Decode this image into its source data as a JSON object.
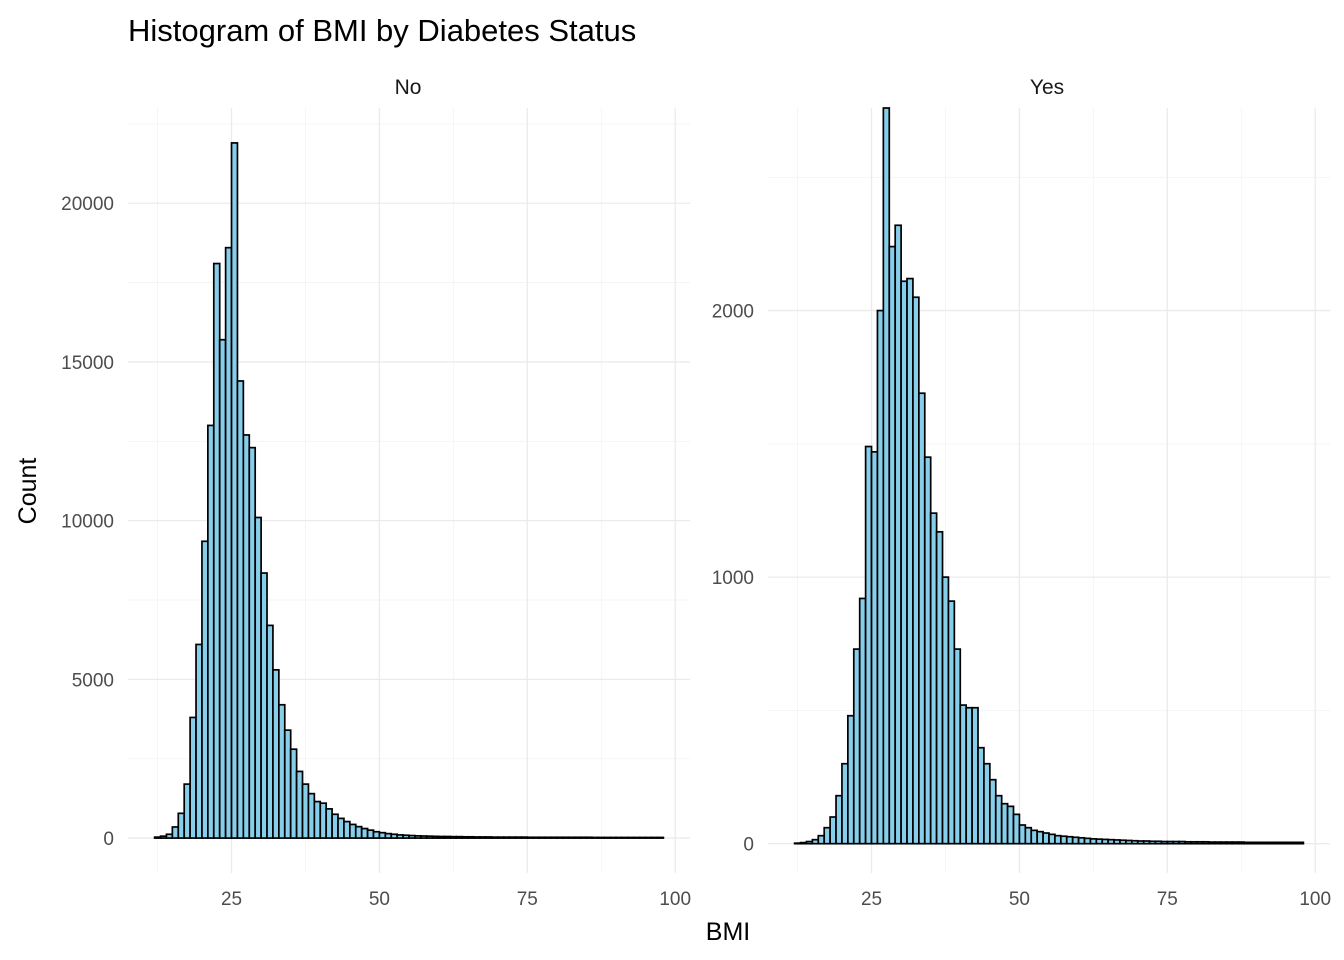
{
  "chart_data": {
    "type": "bar",
    "title": "Histogram of BMI by Diabetes Status",
    "xlabel": "BMI",
    "ylabel": "Count",
    "bin_width": 1,
    "bin_start": 12,
    "bar_fill": "#87ceeb",
    "bar_stroke": "#000000",
    "grid": true,
    "legend": "none",
    "panels": [
      {
        "label": "No",
        "xlim": [
          7.5,
          102.5
        ],
        "ylim": [
          -1100,
          23000
        ],
        "x_ticks": [
          25,
          50,
          75,
          100
        ],
        "y_ticks": [
          0,
          5000,
          10000,
          15000,
          20000
        ],
        "y_tick_labels": [
          "0",
          "5000",
          "10000",
          "15000",
          "20000"
        ],
        "values": [
          30,
          60,
          120,
          350,
          780,
          1700,
          3800,
          6100,
          9350,
          13000,
          18100,
          15700,
          18600,
          21900,
          14400,
          12700,
          12300,
          10100,
          8350,
          6700,
          5300,
          4200,
          3400,
          2800,
          2100,
          1700,
          1400,
          1150,
          1100,
          920,
          750,
          620,
          520,
          430,
          360,
          300,
          250,
          200,
          170,
          140,
          120,
          100,
          90,
          80,
          70,
          65,
          60,
          55,
          50,
          50,
          45,
          45,
          40,
          40,
          35,
          35,
          35,
          30,
          30,
          30,
          30,
          30,
          30,
          25,
          25,
          25,
          25,
          25,
          25,
          25,
          25,
          25,
          25,
          25,
          20,
          20,
          20,
          20,
          20,
          20,
          20,
          20,
          20,
          20,
          20,
          20
        ]
      },
      {
        "label": "Yes",
        "xlim": [
          7.5,
          102.5
        ],
        "ylim": [
          -110,
          2760
        ],
        "x_ticks": [
          25,
          50,
          75,
          100
        ],
        "y_ticks": [
          0,
          1000,
          2000
        ],
        "y_tick_labels": [
          "0",
          "1000",
          "2000"
        ],
        "values": [
          2,
          4,
          8,
          15,
          30,
          60,
          100,
          180,
          300,
          480,
          730,
          920,
          1490,
          1470,
          2000,
          2760,
          2240,
          2320,
          2110,
          2120,
          2050,
          1690,
          1450,
          1240,
          1170,
          1000,
          910,
          730,
          520,
          510,
          510,
          360,
          300,
          240,
          180,
          150,
          140,
          110,
          70,
          60,
          50,
          45,
          40,
          35,
          30,
          28,
          26,
          24,
          22,
          20,
          18,
          17,
          16,
          15,
          14,
          13,
          12,
          11,
          10,
          10,
          9,
          9,
          8,
          8,
          8,
          8,
          7,
          7,
          7,
          7,
          6,
          6,
          6,
          6,
          6,
          6,
          5,
          5,
          5,
          5,
          5,
          5,
          5,
          5,
          5,
          5
        ]
      }
    ]
  }
}
